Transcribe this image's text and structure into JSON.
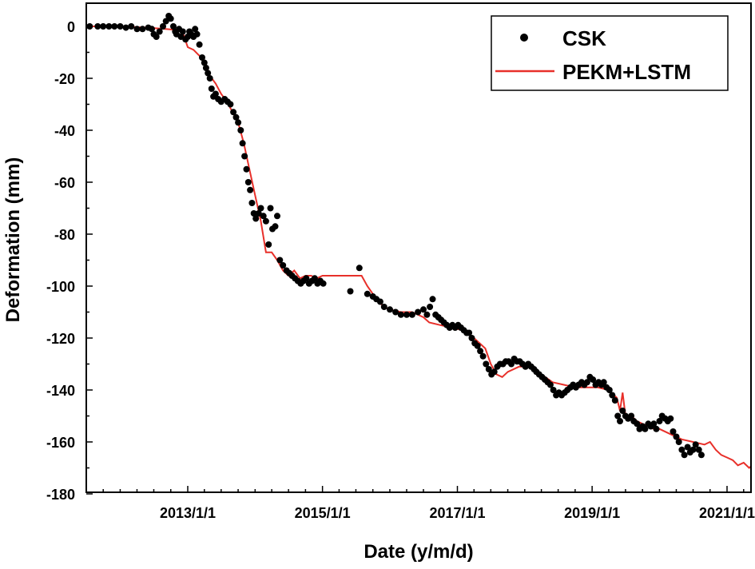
{
  "chart_data": {
    "type": "scatter",
    "xlabel": "Date (y/m/d)",
    "ylabel": "Deformation (mm)",
    "x_ticks": [
      "2013/1/1",
      "2015/1/1",
      "2017/1/1",
      "2019/1/1",
      "2021/1/1"
    ],
    "y_ticks": [
      "0",
      "-20",
      "-40",
      "-60",
      "-80",
      "-100",
      "-120",
      "-140",
      "-160",
      "-180"
    ],
    "xlim": [
      "2011-06-15",
      "2021-07-15"
    ],
    "ylim": [
      -180,
      10
    ],
    "grid": false,
    "legend_position": "top-right",
    "colors": {
      "CSK": "#000000",
      "PEKM+LSTM": "#e8302a"
    },
    "series": [
      {
        "name": "CSK",
        "kind": "scatter",
        "points": [
          [
            "2011-06-20",
            -0.5
          ],
          [
            "2011-07-20",
            0
          ],
          [
            "2011-09-01",
            0
          ],
          [
            "2011-10-01",
            0
          ],
          [
            "2011-11-01",
            0
          ],
          [
            "2011-12-01",
            0
          ],
          [
            "2012-01-01",
            0
          ],
          [
            "2012-02-01",
            -0.5
          ],
          [
            "2012-03-01",
            0
          ],
          [
            "2012-04-01",
            -1
          ],
          [
            "2012-05-01",
            -1
          ],
          [
            "2012-06-01",
            -0.5
          ],
          [
            "2012-06-20",
            -1
          ],
          [
            "2012-07-01",
            -3
          ],
          [
            "2012-07-15",
            -4
          ],
          [
            "2012-08-01",
            -2
          ],
          [
            "2012-08-20",
            0
          ],
          [
            "2012-09-05",
            2
          ],
          [
            "2012-09-20",
            4
          ],
          [
            "2012-10-01",
            3
          ],
          [
            "2012-10-15",
            0
          ],
          [
            "2012-10-25",
            -2
          ],
          [
            "2012-11-01",
            -3
          ],
          [
            "2012-11-15",
            -1
          ],
          [
            "2012-11-25",
            -4
          ],
          [
            "2012-12-05",
            -2
          ],
          [
            "2012-12-20",
            -5
          ],
          [
            "2013-01-01",
            -4
          ],
          [
            "2013-01-10",
            -2
          ],
          [
            "2013-01-20",
            -3
          ],
          [
            "2013-02-01",
            -4
          ],
          [
            "2013-02-10",
            -1
          ],
          [
            "2013-02-20",
            -3
          ],
          [
            "2013-03-05",
            -7
          ],
          [
            "2013-03-20",
            -12
          ],
          [
            "2013-04-01",
            -14
          ],
          [
            "2013-04-10",
            -16
          ],
          [
            "2013-04-20",
            -18
          ],
          [
            "2013-05-01",
            -20
          ],
          [
            "2013-05-10",
            -24
          ],
          [
            "2013-05-20",
            -27
          ],
          [
            "2013-06-01",
            -26
          ],
          [
            "2013-06-15",
            -28
          ],
          [
            "2013-07-01",
            -29
          ],
          [
            "2013-07-20",
            -28
          ],
          [
            "2013-08-05",
            -29
          ],
          [
            "2013-08-20",
            -30
          ],
          [
            "2013-09-05",
            -33
          ],
          [
            "2013-09-20",
            -35
          ],
          [
            "2013-10-01",
            -37
          ],
          [
            "2013-10-15",
            -40
          ],
          [
            "2013-10-25",
            -45
          ],
          [
            "2013-11-05",
            -50
          ],
          [
            "2013-11-15",
            -55
          ],
          [
            "2013-11-25",
            -60
          ],
          [
            "2013-12-05",
            -63
          ],
          [
            "2013-12-15",
            -68
          ],
          [
            "2013-12-25",
            -72
          ],
          [
            "2014-01-05",
            -74
          ],
          [
            "2014-01-20",
            -72
          ],
          [
            "2014-02-01",
            -70
          ],
          [
            "2014-02-15",
            -73
          ],
          [
            "2014-03-01",
            -75
          ],
          [
            "2014-03-15",
            -84
          ],
          [
            "2014-03-25",
            -70
          ],
          [
            "2014-04-05",
            -78
          ],
          [
            "2014-04-20",
            -77
          ],
          [
            "2014-05-01",
            -73
          ],
          [
            "2014-05-15",
            -90
          ],
          [
            "2014-06-01",
            -92
          ],
          [
            "2014-06-20",
            -94
          ],
          [
            "2014-07-05",
            -95
          ],
          [
            "2014-07-20",
            -96
          ],
          [
            "2014-08-05",
            -97
          ],
          [
            "2014-08-20",
            -98
          ],
          [
            "2014-09-05",
            -99
          ],
          [
            "2014-09-20",
            -98
          ],
          [
            "2014-10-05",
            -97
          ],
          [
            "2014-10-20",
            -99
          ],
          [
            "2014-11-05",
            -98
          ],
          [
            "2014-11-20",
            -97
          ],
          [
            "2014-12-05",
            -99
          ],
          [
            "2014-12-20",
            -98
          ],
          [
            "2015-01-05",
            -99
          ],
          [
            "2015-06-01",
            -102
          ],
          [
            "2015-07-20",
            -93
          ],
          [
            "2015-09-01",
            -103
          ],
          [
            "2015-10-01",
            -104
          ],
          [
            "2015-10-20",
            -105
          ],
          [
            "2015-11-10",
            -106
          ],
          [
            "2015-12-01",
            -108
          ],
          [
            "2016-01-01",
            -109
          ],
          [
            "2016-02-01",
            -110
          ],
          [
            "2016-03-01",
            -111
          ],
          [
            "2016-04-01",
            -111
          ],
          [
            "2016-05-01",
            -111
          ],
          [
            "2016-06-01",
            -110
          ],
          [
            "2016-07-01",
            -109
          ],
          [
            "2016-07-20",
            -111
          ],
          [
            "2016-08-05",
            -108
          ],
          [
            "2016-08-20",
            -105
          ],
          [
            "2016-09-05",
            -111
          ],
          [
            "2016-09-20",
            -112
          ],
          [
            "2016-10-05",
            -113
          ],
          [
            "2016-10-20",
            -114
          ],
          [
            "2016-11-05",
            -115
          ],
          [
            "2016-11-20",
            -116
          ],
          [
            "2016-12-05",
            -115
          ],
          [
            "2016-12-20",
            -116
          ],
          [
            "2017-01-05",
            -115
          ],
          [
            "2017-01-20",
            -116
          ],
          [
            "2017-02-05",
            -117
          ],
          [
            "2017-02-20",
            -118
          ],
          [
            "2017-03-05",
            -118
          ],
          [
            "2017-03-20",
            -120
          ],
          [
            "2017-04-05",
            -122
          ],
          [
            "2017-04-20",
            -123
          ],
          [
            "2017-05-05",
            -125
          ],
          [
            "2017-05-20",
            -127
          ],
          [
            "2017-06-05",
            -130
          ],
          [
            "2017-06-20",
            -132
          ],
          [
            "2017-07-05",
            -134
          ],
          [
            "2017-07-20",
            -133
          ],
          [
            "2017-08-05",
            -131
          ],
          [
            "2017-08-20",
            -130
          ],
          [
            "2017-09-05",
            -130
          ],
          [
            "2017-09-20",
            -129
          ],
          [
            "2017-10-05",
            -129
          ],
          [
            "2017-10-20",
            -130
          ],
          [
            "2017-11-05",
            -128
          ],
          [
            "2017-11-20",
            -129
          ],
          [
            "2017-12-05",
            -129
          ],
          [
            "2017-12-20",
            -130
          ],
          [
            "2018-01-05",
            -131
          ],
          [
            "2018-01-20",
            -130
          ],
          [
            "2018-02-05",
            -131
          ],
          [
            "2018-02-20",
            -132
          ],
          [
            "2018-03-05",
            -133
          ],
          [
            "2018-03-20",
            -134
          ],
          [
            "2018-04-05",
            -135
          ],
          [
            "2018-04-20",
            -136
          ],
          [
            "2018-05-05",
            -137
          ],
          [
            "2018-05-20",
            -138
          ],
          [
            "2018-06-05",
            -140
          ],
          [
            "2018-06-20",
            -142
          ],
          [
            "2018-07-05",
            -141
          ],
          [
            "2018-07-20",
            -142
          ],
          [
            "2018-08-05",
            -141
          ],
          [
            "2018-08-20",
            -140
          ],
          [
            "2018-09-05",
            -139
          ],
          [
            "2018-09-20",
            -138
          ],
          [
            "2018-10-05",
            -139
          ],
          [
            "2018-10-20",
            -138
          ],
          [
            "2018-11-05",
            -137
          ],
          [
            "2018-11-20",
            -138
          ],
          [
            "2018-12-05",
            -137
          ],
          [
            "2018-12-20",
            -135
          ],
          [
            "2019-01-05",
            -136
          ],
          [
            "2019-01-20",
            -138
          ],
          [
            "2019-02-05",
            -137
          ],
          [
            "2019-02-20",
            -138
          ],
          [
            "2019-03-05",
            -137
          ],
          [
            "2019-03-20",
            -139
          ],
          [
            "2019-04-05",
            -140
          ],
          [
            "2019-04-20",
            -142
          ],
          [
            "2019-05-05",
            -144
          ],
          [
            "2019-05-20",
            -150
          ],
          [
            "2019-06-01",
            -152
          ],
          [
            "2019-06-15",
            -148
          ],
          [
            "2019-07-01",
            -150
          ],
          [
            "2019-07-15",
            -151
          ],
          [
            "2019-08-01",
            -150
          ],
          [
            "2019-08-15",
            -152
          ],
          [
            "2019-09-01",
            -153
          ],
          [
            "2019-09-15",
            -155
          ],
          [
            "2019-10-01",
            -154
          ],
          [
            "2019-10-15",
            -155
          ],
          [
            "2019-11-01",
            -153
          ],
          [
            "2019-11-15",
            -154
          ],
          [
            "2019-12-01",
            -153
          ],
          [
            "2019-12-15",
            -155
          ],
          [
            "2020-01-01",
            -152
          ],
          [
            "2020-01-15",
            -150
          ],
          [
            "2020-02-01",
            -151
          ],
          [
            "2020-02-15",
            -152
          ],
          [
            "2020-03-01",
            -151
          ],
          [
            "2020-03-15",
            -156
          ],
          [
            "2020-04-01",
            -158
          ],
          [
            "2020-04-15",
            -160
          ],
          [
            "2020-05-01",
            -163
          ],
          [
            "2020-05-15",
            -165
          ],
          [
            "2020-06-01",
            -162
          ],
          [
            "2020-06-15",
            -164
          ],
          [
            "2020-07-01",
            -163
          ],
          [
            "2020-07-15",
            -161
          ],
          [
            "2020-08-01",
            -163
          ],
          [
            "2020-08-15",
            -165
          ]
        ]
      },
      {
        "name": "PEKM+LSTM",
        "kind": "line",
        "points": [
          [
            "2011-06-15",
            0
          ],
          [
            "2011-09-01",
            0
          ],
          [
            "2012-01-01",
            0
          ],
          [
            "2012-06-01",
            -0.5
          ],
          [
            "2012-09-01",
            -1
          ],
          [
            "2012-12-01",
            -1.5
          ],
          [
            "2013-01-01",
            -8
          ],
          [
            "2013-02-01",
            -9
          ],
          [
            "2013-03-01",
            -11
          ],
          [
            "2013-04-01",
            -13
          ],
          [
            "2013-05-01",
            -19
          ],
          [
            "2013-06-01",
            -22
          ],
          [
            "2013-07-01",
            -26
          ],
          [
            "2013-08-01",
            -29
          ],
          [
            "2013-09-01",
            -33
          ],
          [
            "2013-10-01",
            -37
          ],
          [
            "2013-11-01",
            -45
          ],
          [
            "2013-12-01",
            -55
          ],
          [
            "2014-01-01",
            -65
          ],
          [
            "2014-02-01",
            -75
          ],
          [
            "2014-03-01",
            -87
          ],
          [
            "2014-04-01",
            -87
          ],
          [
            "2014-05-01",
            -90
          ],
          [
            "2014-06-01",
            -94
          ],
          [
            "2014-07-01",
            -96
          ],
          [
            "2014-08-01",
            -94
          ],
          [
            "2014-09-01",
            -97
          ],
          [
            "2014-10-01",
            -96
          ],
          [
            "2014-11-01",
            -96
          ],
          [
            "2014-12-01",
            -97
          ],
          [
            "2015-01-01",
            -96
          ],
          [
            "2015-06-01",
            -96
          ],
          [
            "2015-08-01",
            -96
          ],
          [
            "2015-09-01",
            -100
          ],
          [
            "2015-10-01",
            -103
          ],
          [
            "2015-11-01",
            -106
          ],
          [
            "2015-12-01",
            -108
          ],
          [
            "2016-01-01",
            -109
          ],
          [
            "2016-03-01",
            -110
          ],
          [
            "2016-05-01",
            -110
          ],
          [
            "2016-07-01",
            -112
          ],
          [
            "2016-08-01",
            -114
          ],
          [
            "2016-10-01",
            -115
          ],
          [
            "2016-12-01",
            -116
          ],
          [
            "2017-02-01",
            -117
          ],
          [
            "2017-04-01",
            -120
          ],
          [
            "2017-06-01",
            -124
          ],
          [
            "2017-07-01",
            -130
          ],
          [
            "2017-08-01",
            -134
          ],
          [
            "2017-09-01",
            -135
          ],
          [
            "2017-10-01",
            -133
          ],
          [
            "2017-12-01",
            -131
          ],
          [
            "2018-02-01",
            -131
          ],
          [
            "2018-04-01",
            -134
          ],
          [
            "2018-06-01",
            -137
          ],
          [
            "2018-08-01",
            -138
          ],
          [
            "2018-10-01",
            -139
          ],
          [
            "2018-12-01",
            -139
          ],
          [
            "2019-02-01",
            -139
          ],
          [
            "2019-04-01",
            -140
          ],
          [
            "2019-05-15",
            -143
          ],
          [
            "2019-06-01",
            -148
          ],
          [
            "2019-06-15",
            -141
          ],
          [
            "2019-07-01",
            -150
          ],
          [
            "2019-08-01",
            -150
          ],
          [
            "2019-09-01",
            -152
          ],
          [
            "2019-10-01",
            -153
          ],
          [
            "2019-11-01",
            -154
          ],
          [
            "2019-12-01",
            -155
          ],
          [
            "2020-01-01",
            -155
          ],
          [
            "2020-03-01",
            -157
          ],
          [
            "2020-05-01",
            -159
          ],
          [
            "2020-07-01",
            -160
          ],
          [
            "2020-09-01",
            -161
          ],
          [
            "2020-10-01",
            -160
          ],
          [
            "2020-11-01",
            -163
          ],
          [
            "2020-12-01",
            -165
          ],
          [
            "2021-01-01",
            -166
          ],
          [
            "2021-02-01",
            -167
          ],
          [
            "2021-03-01",
            -169
          ],
          [
            "2021-04-01",
            -168
          ],
          [
            "2021-05-01",
            -170
          ],
          [
            "2021-06-01",
            -168
          ],
          [
            "2021-07-01",
            -169
          ]
        ]
      }
    ]
  }
}
